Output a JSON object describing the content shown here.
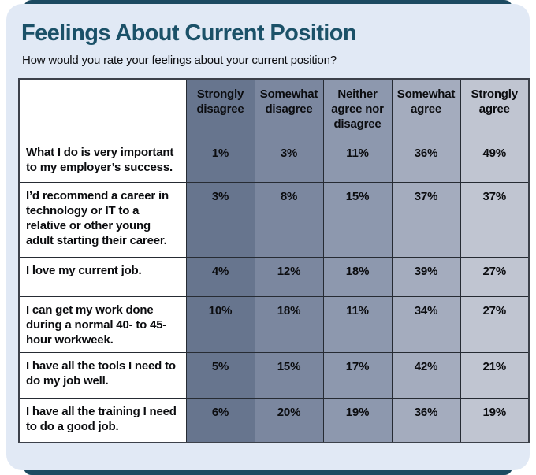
{
  "chart_data": {
    "type": "table",
    "title": "Feelings About Current Position",
    "question": "How would you rate your feelings about your current position?",
    "columns": [
      "Strongly disagree",
      "Somewhat disagree",
      "Neither agree nor disagree",
      "Somewhat agree",
      "Strongly agree"
    ],
    "column_colors": [
      "#67758e",
      "#7b879f",
      "#8d98ae",
      "#a4acbe",
      "#c0c5d1"
    ],
    "value_suffix": "%",
    "rows": [
      {
        "label": "What I do is very important to my employer’s success.",
        "values": [
          1,
          3,
          11,
          36,
          49
        ]
      },
      {
        "label": "I’d recommend a career in technology or IT to a relative or other young adult starting their career.",
        "values": [
          3,
          8,
          15,
          37,
          37
        ]
      },
      {
        "label": "I love my current job.",
        "values": [
          4,
          12,
          18,
          39,
          27
        ]
      },
      {
        "label": "I can get my work done during a normal 40- to 45-hour workweek.",
        "values": [
          10,
          18,
          11,
          34,
          27
        ]
      },
      {
        "label": "I have all the tools I need to do my job well.",
        "values": [
          5,
          15,
          17,
          42,
          21
        ]
      },
      {
        "label": "I have all the training I need to do a good job.",
        "values": [
          6,
          20,
          19,
          36,
          19
        ]
      }
    ]
  },
  "colors": {
    "card_background": "#e1e9f5",
    "accent_strip": "#1c4a61",
    "title_text": "#1b5168",
    "table_border": "#262b33"
  }
}
